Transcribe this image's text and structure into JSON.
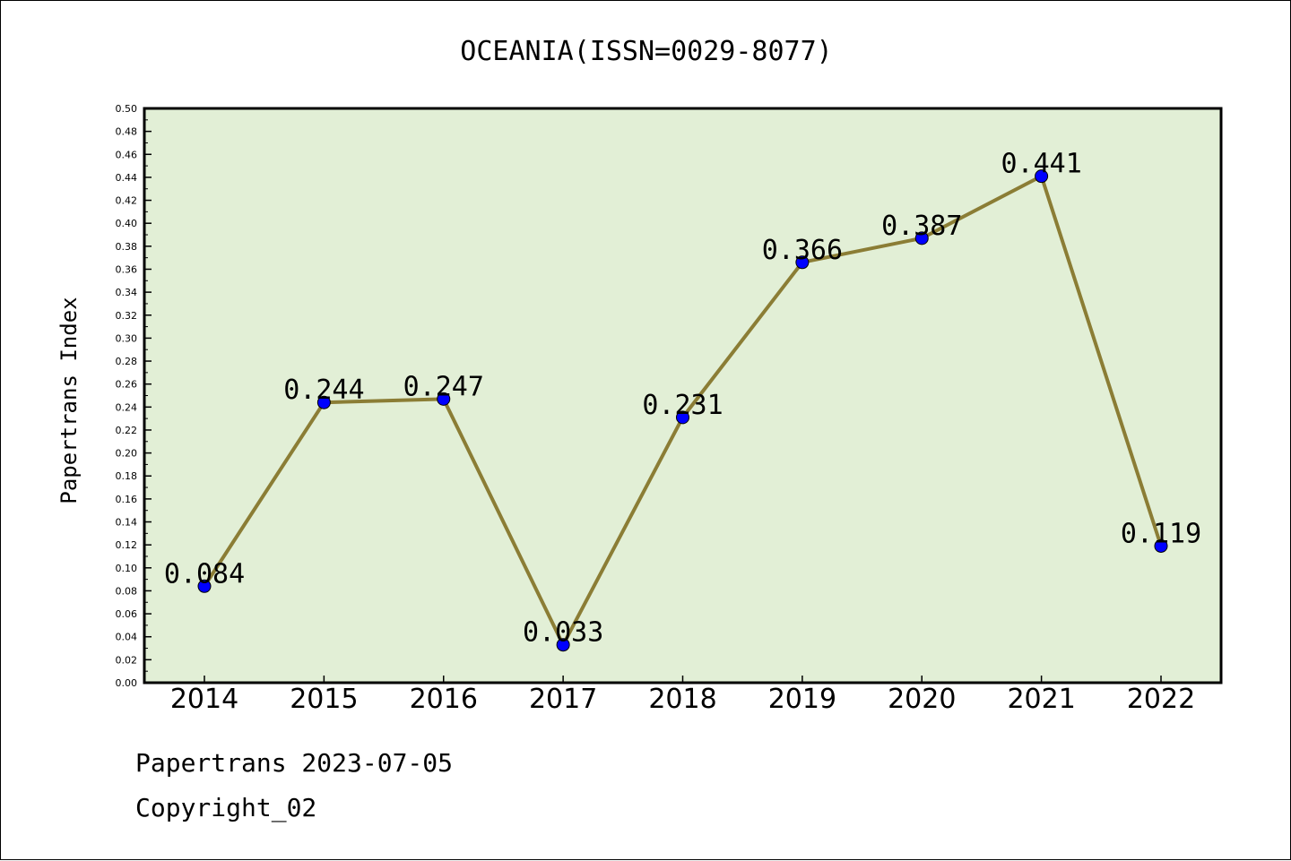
{
  "chart_data": {
    "type": "line",
    "title": "OCEANIA(ISSN=0029-8077)",
    "xlabel": "",
    "ylabel": "Papertrans Index",
    "categories": [
      "2014",
      "2015",
      "2016",
      "2017",
      "2018",
      "2019",
      "2020",
      "2021",
      "2022"
    ],
    "series": [
      {
        "values": [
          0.084,
          0.244,
          0.247,
          0.033,
          0.231,
          0.366,
          0.387,
          0.441,
          0.119
        ]
      }
    ],
    "data_labels": [
      "0.084",
      "0.244",
      "0.247",
      "0.033",
      "0.231",
      "0.366",
      "0.387",
      "0.441",
      "0.119"
    ],
    "ylim": [
      0,
      0.5
    ],
    "yticks": [
      "0.00",
      "0.02",
      "0.04",
      "0.06",
      "0.08",
      "0.10",
      "0.12",
      "0.14",
      "0.16",
      "0.18",
      "0.20",
      "0.22",
      "0.24",
      "0.26",
      "0.28",
      "0.30",
      "0.32",
      "0.34",
      "0.36",
      "0.38",
      "0.40",
      "0.42",
      "0.44",
      "0.46",
      "0.48",
      "0.50"
    ],
    "grid": false,
    "colors": {
      "plot_background": "#e2efd6",
      "line": "#8b7d35",
      "marker": "#0000ff"
    }
  },
  "footer": {
    "source": "Papertrans 2023-07-05",
    "copyright": "Copyright_02"
  }
}
